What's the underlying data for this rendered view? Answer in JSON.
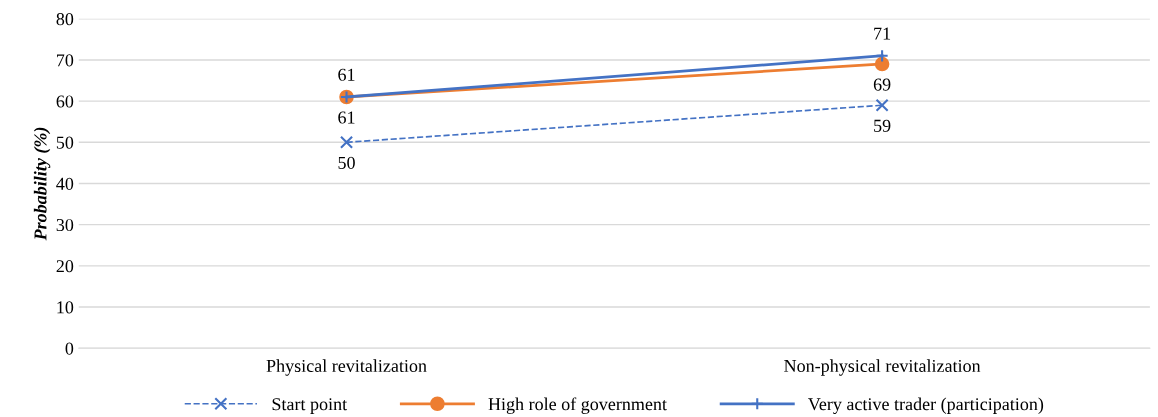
{
  "chart_data": {
    "type": "line",
    "ylabel": "Probability (%)",
    "categories": [
      "Physical revitalization",
      "Non-physical revitalization"
    ],
    "series": [
      {
        "name": "Start point",
        "color": "#4472c4",
        "values": [
          50,
          59
        ],
        "marker": "cross",
        "line_style": "dashed"
      },
      {
        "name": "High role of government",
        "color": "#ed7d31",
        "values": [
          61,
          69
        ],
        "marker": "circle",
        "line_style": "solid"
      },
      {
        "name": "Very active trader (participation)",
        "color": "#4472c4",
        "values": [
          61,
          71
        ],
        "marker": "plus",
        "line_style": "solid"
      }
    ],
    "ylim": [
      0,
      80
    ],
    "yticks": [
      0,
      10,
      20,
      30,
      40,
      50,
      60,
      70,
      80
    ],
    "grid": "y",
    "legend": "bottom",
    "data_labels": true
  }
}
